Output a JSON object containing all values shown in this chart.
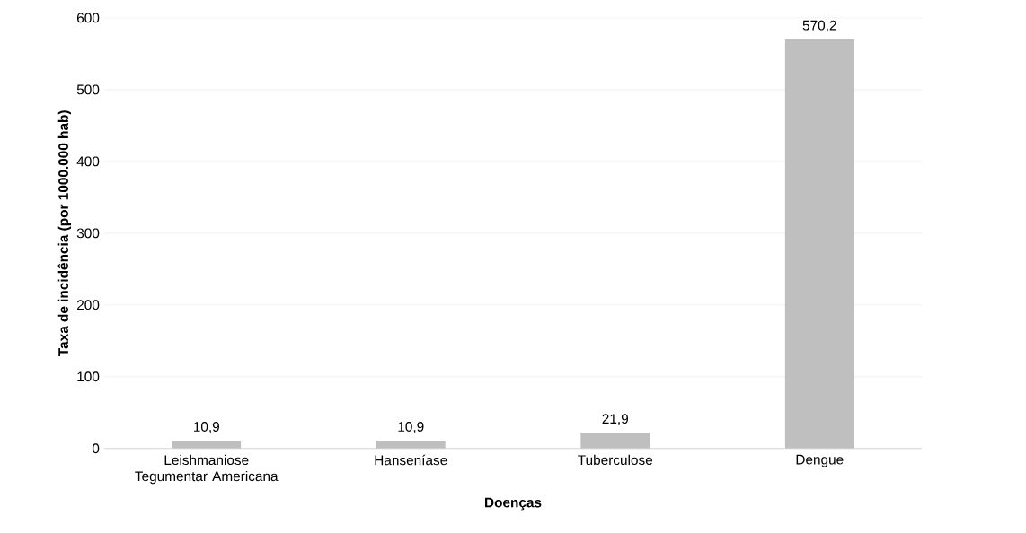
{
  "chart_data": {
    "type": "bar",
    "xlabel": "Doenças",
    "ylabel": "Taxa de incidência (por 1000.000 hab)",
    "categories": [
      "Leishmaniose Tegumentar Americana",
      "Hanseníase",
      "Tuberculose",
      "Dengue"
    ],
    "values": [
      10.9,
      10.9,
      21.9,
      570.2
    ],
    "value_labels": [
      "10,9",
      "10,9",
      "21,9",
      "570,2"
    ],
    "color": "#bfbfbf",
    "ylim": [
      0,
      600
    ],
    "yticks": [
      0,
      100,
      200,
      300,
      400,
      500,
      600
    ],
    "grid": "y"
  }
}
